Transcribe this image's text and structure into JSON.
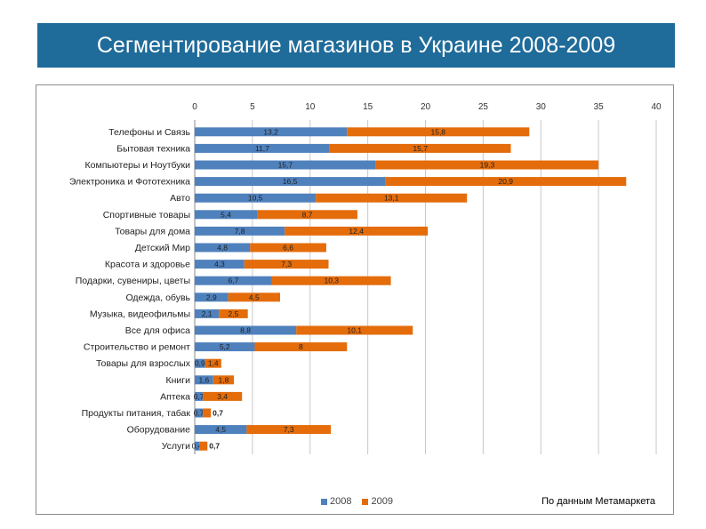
{
  "page": {
    "title": "Сегментирование магазинов в Украине 2008-2009",
    "note": "По данным Метамаркета"
  },
  "chart_data": {
    "type": "bar",
    "orientation": "horizontal",
    "stacked": true,
    "title": "",
    "xlabel": "",
    "ylabel": "",
    "xlim": [
      0,
      40
    ],
    "x_ticks": [
      0,
      5,
      10,
      15,
      20,
      25,
      30,
      35,
      40
    ],
    "x_tick_labels": [
      "0",
      "5",
      "10",
      "15",
      "20",
      "25",
      "30",
      "35",
      "40"
    ],
    "grid": true,
    "legend_position": "bottom",
    "categories": [
      "Телефоны и Связь",
      "Бытовая техника",
      "Компьютеры и Ноутбуки",
      "Электроника и Фототехника",
      "Авто",
      "Спортивные товары",
      "Товары для дома",
      "Детский Мир",
      "Красота и здоровье",
      "Подарки, сувениры, цветы",
      "Одежда, обувь",
      "Музыка, видеофильмы",
      "Все для офиса",
      "Строительство и ремонт",
      "Товары для взрослых",
      "Книги",
      "Аптека",
      "Продукты питания, табак",
      "Оборудование",
      "Услуги"
    ],
    "series": [
      {
        "name": "2008",
        "color": "#4f81bd",
        "values": [
          13.2,
          11.7,
          15.7,
          16.5,
          10.5,
          5.4,
          7.8,
          4.8,
          4.3,
          6.7,
          2.9,
          2.1,
          8.8,
          5.2,
          0.9,
          1.6,
          0.7,
          0.7,
          4.5,
          0.4
        ],
        "labels": [
          "13,2",
          "11,7",
          "15,7",
          "16,5",
          "10,5",
          "5,4",
          "7,8",
          "4,8",
          "4,3",
          "6,7",
          "2,9",
          "2,1",
          "8,8",
          "5,2",
          "0,9",
          "1,6",
          "0,7",
          "0,7",
          "4,5",
          "0,4"
        ]
      },
      {
        "name": "2009",
        "color": "#e46c0a",
        "values": [
          15.8,
          15.7,
          19.3,
          20.9,
          13.1,
          8.7,
          12.4,
          6.6,
          7.3,
          10.3,
          4.5,
          2.5,
          10.1,
          8,
          1.4,
          1.8,
          3.4,
          0.7,
          7.3,
          0.7
        ],
        "labels": [
          "15,8",
          "15,7",
          "19,3",
          "20,9",
          "13,1",
          "8,7",
          "12,4",
          "6,6",
          "7,3",
          "10,3",
          "4,5",
          "2,5",
          "10,1",
          "8",
          "1,4",
          "1,8",
          "3,4",
          "0,7",
          "7,3",
          "0,7"
        ]
      }
    ]
  }
}
